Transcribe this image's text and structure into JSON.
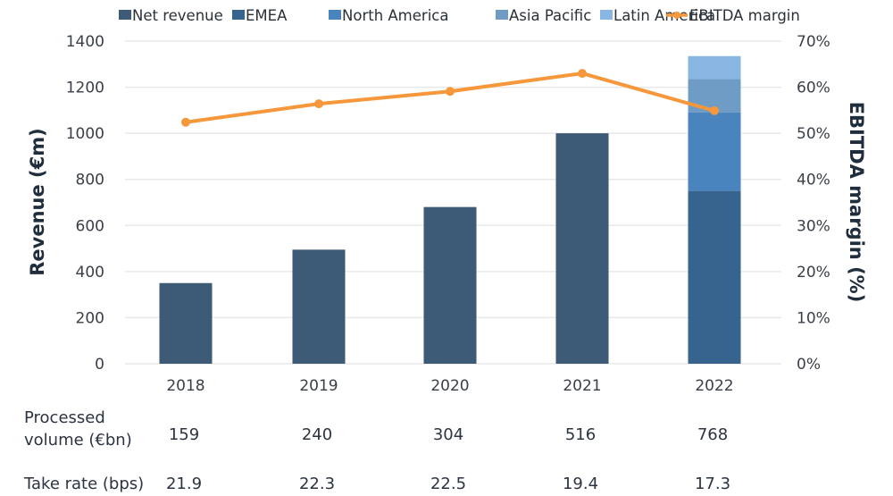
{
  "chart_data": {
    "type": "bar",
    "title": "",
    "categories": [
      "2018",
      "2019",
      "2020",
      "2021",
      "2022"
    ],
    "series": [
      {
        "name": "Net revenue",
        "kind": "bar",
        "axis": "left",
        "color": "#3d5a76",
        "values": [
          350,
          495,
          680,
          1000,
          null
        ]
      },
      {
        "name": "EMEA",
        "kind": "stacked-bar",
        "axis": "left",
        "color": "#37648f",
        "values": [
          null,
          null,
          null,
          null,
          750
        ]
      },
      {
        "name": "North America",
        "kind": "stacked-bar",
        "axis": "left",
        "color": "#4a84be",
        "values": [
          null,
          null,
          null,
          null,
          340
        ]
      },
      {
        "name": "Asia Pacific",
        "kind": "stacked-bar",
        "axis": "left",
        "color": "#6f9cc4",
        "values": [
          null,
          null,
          null,
          null,
          145
        ]
      },
      {
        "name": "Latin America",
        "kind": "stacked-bar",
        "axis": "left",
        "color": "#89b6e2",
        "values": [
          null,
          null,
          null,
          null,
          100
        ]
      },
      {
        "name": "EBITDA margin",
        "kind": "line",
        "axis": "right",
        "color": "#f5973a",
        "values": [
          52.4,
          56.4,
          59.1,
          63.0,
          54.9
        ]
      }
    ],
    "ylabel": "Revenue (€m)",
    "ylim": [
      0,
      1400
    ],
    "yticks": [
      "0",
      "200",
      "400",
      "600",
      "800",
      "1000",
      "1200",
      "1400"
    ],
    "y2label": "EBITDA margin (%)",
    "y2lim": [
      0,
      70
    ],
    "y2ticks": [
      "0%",
      "10%",
      "20%",
      "30%",
      "40%",
      "50%",
      "60%",
      "70%"
    ],
    "grid": true,
    "legend_position": "top",
    "table_rows": [
      {
        "label_lines": [
          "Processed",
          "volume (€bn)"
        ],
        "values": [
          "159",
          "240",
          "304",
          "516",
          "768"
        ]
      },
      {
        "label_lines": [
          "Take rate (bps)"
        ],
        "values": [
          "21.9",
          "22.3",
          "22.5",
          "19.4",
          "17.3"
        ]
      }
    ]
  }
}
